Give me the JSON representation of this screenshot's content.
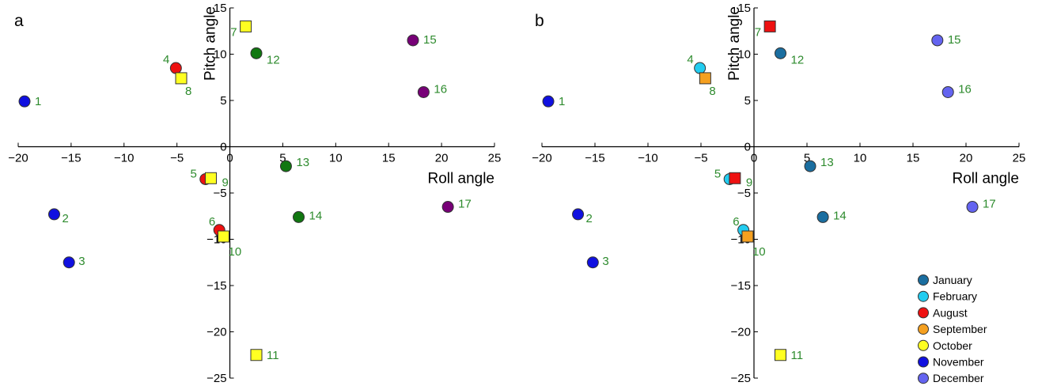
{
  "chart_data": [
    {
      "type": "scatter",
      "panel_label": "a",
      "xlabel": "Roll angle",
      "ylabel": "Pitch angle",
      "xlim": [
        -20,
        25
      ],
      "ylim": [
        -25,
        15
      ],
      "xticks": [
        -20,
        -15,
        -10,
        -5,
        0,
        5,
        10,
        15,
        20,
        25
      ],
      "yticks": [
        -25,
        -20,
        -15,
        -10,
        -5,
        0,
        5,
        10,
        15
      ],
      "xtick_labels": [
        "−20",
        "−15",
        "−10",
        "−5",
        "0",
        "5",
        "10",
        "15",
        "20",
        "25"
      ],
      "ytick_labels": [
        "−25",
        "−20",
        "−15",
        "−10",
        "−5",
        "0",
        "5",
        "10",
        "15"
      ],
      "points": [
        {
          "label": "1",
          "x": -19.4,
          "y": 4.9,
          "marker": "circle",
          "color": "#1010e0"
        },
        {
          "label": "2",
          "x": -16.6,
          "y": -7.3,
          "marker": "circle",
          "color": "#1010e0"
        },
        {
          "label": "3",
          "x": -15.2,
          "y": -12.5,
          "marker": "circle",
          "color": "#1010e0"
        },
        {
          "label": "4",
          "x": -5.1,
          "y": 8.5,
          "marker": "circle",
          "color": "#ee1111"
        },
        {
          "label": "5",
          "x": -2.3,
          "y": -3.5,
          "marker": "circle",
          "color": "#ee1111"
        },
        {
          "label": "6",
          "x": -1.0,
          "y": -9.0,
          "marker": "circle",
          "color": "#ee1111"
        },
        {
          "label": "7",
          "x": 1.5,
          "y": 13.0,
          "marker": "square",
          "color": "#ffff22"
        },
        {
          "label": "8",
          "x": -4.6,
          "y": 7.4,
          "marker": "square",
          "color": "#ffff22"
        },
        {
          "label": "9",
          "x": -1.8,
          "y": -3.4,
          "marker": "square",
          "color": "#ffff22"
        },
        {
          "label": "10",
          "x": -0.6,
          "y": -9.7,
          "marker": "square",
          "color": "#ffff22"
        },
        {
          "label": "11",
          "x": 2.5,
          "y": -22.5,
          "marker": "square",
          "color": "#ffff22"
        },
        {
          "label": "12",
          "x": 2.5,
          "y": 10.1,
          "marker": "circle",
          "color": "#117711"
        },
        {
          "label": "13",
          "x": 5.3,
          "y": -2.1,
          "marker": "circle",
          "color": "#117711"
        },
        {
          "label": "14",
          "x": 6.5,
          "y": -7.6,
          "marker": "circle",
          "color": "#117711"
        },
        {
          "label": "15",
          "x": 17.3,
          "y": 11.5,
          "marker": "circle",
          "color": "#770077"
        },
        {
          "label": "16",
          "x": 18.3,
          "y": 5.9,
          "marker": "circle",
          "color": "#770077"
        },
        {
          "label": "17",
          "x": 20.6,
          "y": -6.5,
          "marker": "circle",
          "color": "#770077"
        }
      ]
    },
    {
      "type": "scatter",
      "panel_label": "b",
      "xlabel": "Roll angle",
      "ylabel": "Pitch angle",
      "xlim": [
        -20,
        25
      ],
      "ylim": [
        -25,
        15
      ],
      "xticks": [
        -20,
        -15,
        -10,
        -5,
        0,
        5,
        10,
        15,
        20,
        25
      ],
      "yticks": [
        -25,
        -20,
        -15,
        -10,
        -5,
        0,
        5,
        10,
        15
      ],
      "xtick_labels": [
        "−20",
        "−15",
        "−10",
        "−5",
        "0",
        "5",
        "10",
        "15",
        "20",
        "25"
      ],
      "ytick_labels": [
        "−25",
        "−20",
        "−15",
        "−10",
        "−5",
        "0",
        "5",
        "10",
        "15"
      ],
      "points": [
        {
          "label": "1",
          "x": -19.4,
          "y": 4.9,
          "marker": "circle",
          "color": "#1010e0"
        },
        {
          "label": "2",
          "x": -16.6,
          "y": -7.3,
          "marker": "circle",
          "color": "#1010e0"
        },
        {
          "label": "3",
          "x": -15.2,
          "y": -12.5,
          "marker": "circle",
          "color": "#1010e0"
        },
        {
          "label": "4",
          "x": -5.1,
          "y": 8.5,
          "marker": "circle",
          "color": "#22ccf0"
        },
        {
          "label": "5",
          "x": -2.3,
          "y": -3.5,
          "marker": "circle",
          "color": "#22ccf0"
        },
        {
          "label": "6",
          "x": -1.0,
          "y": -9.0,
          "marker": "circle",
          "color": "#22ccf0"
        },
        {
          "label": "7",
          "x": 1.5,
          "y": 13.0,
          "marker": "square",
          "color": "#ee1111"
        },
        {
          "label": "8",
          "x": -4.6,
          "y": 7.4,
          "marker": "square",
          "color": "#f5a020"
        },
        {
          "label": "9",
          "x": -1.8,
          "y": -3.4,
          "marker": "square",
          "color": "#ee1111"
        },
        {
          "label": "10",
          "x": -0.6,
          "y": -9.7,
          "marker": "square",
          "color": "#f5a020"
        },
        {
          "label": "11",
          "x": 2.5,
          "y": -22.5,
          "marker": "square",
          "color": "#ffff22"
        },
        {
          "label": "12",
          "x": 2.5,
          "y": 10.1,
          "marker": "circle",
          "color": "#1a6ea0"
        },
        {
          "label": "13",
          "x": 5.3,
          "y": -2.1,
          "marker": "circle",
          "color": "#1a6ea0"
        },
        {
          "label": "14",
          "x": 6.5,
          "y": -7.6,
          "marker": "circle",
          "color": "#1a6ea0"
        },
        {
          "label": "15",
          "x": 17.3,
          "y": 11.5,
          "marker": "circle",
          "color": "#6464f0"
        },
        {
          "label": "16",
          "x": 18.3,
          "y": 5.9,
          "marker": "circle",
          "color": "#6464f0"
        },
        {
          "label": "17",
          "x": 20.6,
          "y": -6.5,
          "marker": "circle",
          "color": "#6464f0"
        }
      ],
      "legend": {
        "placement": "bottom-right",
        "entries": [
          {
            "name": "January",
            "color": "#1a6ea0"
          },
          {
            "name": "February",
            "color": "#22ccf0"
          },
          {
            "name": "August",
            "color": "#ee1111"
          },
          {
            "name": "September",
            "color": "#f5a020"
          },
          {
            "name": "October",
            "color": "#ffff22"
          },
          {
            "name": "November",
            "color": "#1010e0"
          },
          {
            "name": "December",
            "color": "#6464f0"
          }
        ]
      }
    }
  ]
}
